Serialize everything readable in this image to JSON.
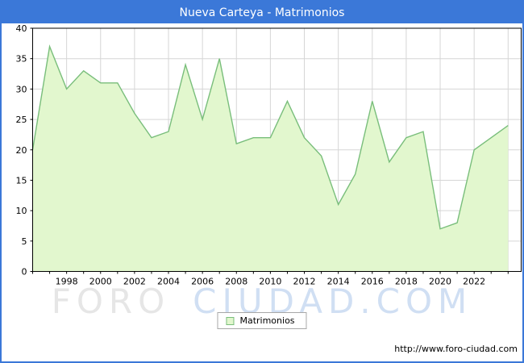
{
  "title_bar": {
    "title": "Nueva Carteya - Matrimonios"
  },
  "chart_data": {
    "type": "area",
    "title": "Nueva Carteya - Matrimonios",
    "x": [
      1996,
      1997,
      1998,
      1999,
      2000,
      2001,
      2002,
      2003,
      2004,
      2005,
      2006,
      2007,
      2008,
      2009,
      2010,
      2011,
      2012,
      2013,
      2014,
      2015,
      2016,
      2017,
      2018,
      2019,
      2020,
      2021,
      2022,
      2023,
      2024
    ],
    "series": [
      {
        "name": "Matrimonios",
        "values": [
          20,
          37,
          30,
          33,
          31,
          31,
          26,
          22,
          23,
          34,
          25,
          35,
          21,
          22,
          22,
          28,
          22,
          19,
          11,
          16,
          28,
          18,
          22,
          23,
          7,
          8,
          20,
          22,
          24
        ]
      }
    ],
    "xlabel": "",
    "ylabel": "",
    "ylim": [
      0,
      40
    ],
    "ytick_step": 5,
    "y_tick_labels": [
      "0",
      "5",
      "10",
      "15",
      "20",
      "25",
      "30",
      "35",
      "40"
    ],
    "x_tick_labels": [
      "1998",
      "2000",
      "2002",
      "2004",
      "2006",
      "2008",
      "2010",
      "2012",
      "2014",
      "2016",
      "2018",
      "2020",
      "2022"
    ],
    "grid": true,
    "legend_position": "bottom",
    "colors": {
      "line": "#79be7b",
      "fill": "#e2f7ce",
      "grid": "#d6d6d6",
      "plot_border": "#000000",
      "title_bg": "#3b78d8",
      "title_text": "#ffffff"
    }
  },
  "legend": {
    "label": "Matrimonios"
  },
  "watermark": {
    "part1": "FORO",
    "part2": "CIUDAD.COM"
  },
  "footer": {
    "url": "http://www.foro-ciudad.com"
  }
}
